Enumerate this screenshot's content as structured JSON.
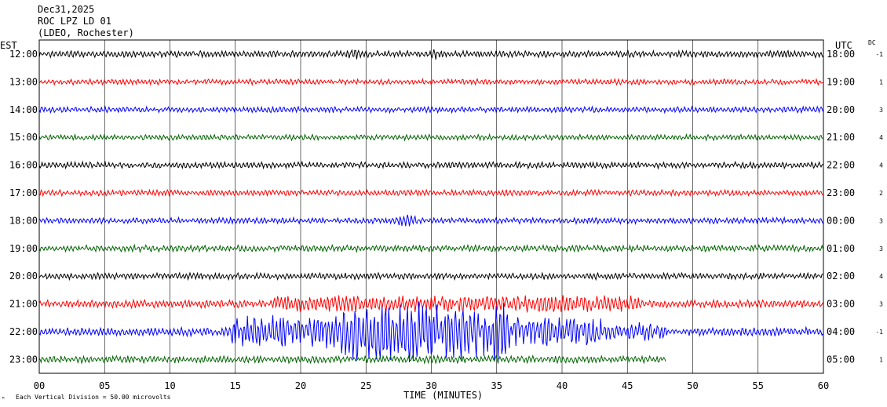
{
  "header": {
    "date": "Dec31,2025",
    "station": "ROC LPZ LD 01",
    "network": "(LDEO, Rochester)"
  },
  "left_axis_label": "EST",
  "right_axis_label": "UTC",
  "dc_label": "DC",
  "x_axis_title": "TIME (MINUTES)",
  "footer": {
    "scale_note": "Each Vertical Division =   50.00 microvolts",
    "corner_mark": "ᴹ"
  },
  "trace_colors": [
    "#000000",
    "#ff0000",
    "#0000ff",
    "#006400"
  ],
  "chart_data": {
    "type": "line",
    "title": "",
    "xlabel": "TIME (MINUTES)",
    "ylabel": "",
    "xlim": [
      0,
      60
    ],
    "x_ticks": [
      "00",
      "05",
      "10",
      "15",
      "20",
      "25",
      "30",
      "35",
      "40",
      "45",
      "50",
      "55",
      "60"
    ],
    "grid": true,
    "series": [
      {
        "est": "12:00",
        "utc": "18:00",
        "dc": "-1",
        "color": "#000000",
        "amplitude": 1.0,
        "events": [
          {
            "start": 23.5,
            "end": 24.5,
            "amp": 1.6
          },
          {
            "start": 30,
            "end": 30.5,
            "amp": 1.8
          }
        ]
      },
      {
        "est": "13:00",
        "utc": "19:00",
        "dc": "1",
        "color": "#ff0000",
        "amplitude": 0.85,
        "events": []
      },
      {
        "est": "14:00",
        "utc": "20:00",
        "dc": "3",
        "color": "#0000ff",
        "amplitude": 0.9,
        "events": []
      },
      {
        "est": "15:00",
        "utc": "21:00",
        "dc": "4",
        "color": "#006400",
        "amplitude": 0.85,
        "events": []
      },
      {
        "est": "16:00",
        "utc": "22:00",
        "dc": "4",
        "color": "#000000",
        "amplitude": 0.95,
        "events": []
      },
      {
        "est": "17:00",
        "utc": "23:00",
        "dc": "2",
        "color": "#ff0000",
        "amplitude": 0.9,
        "events": []
      },
      {
        "est": "18:00",
        "utc": "00:00",
        "dc": "3",
        "color": "#0000ff",
        "amplitude": 0.9,
        "events": [
          {
            "start": 27.5,
            "end": 29,
            "amp": 1.8
          }
        ]
      },
      {
        "est": "19:00",
        "utc": "01:00",
        "dc": "3",
        "color": "#006400",
        "amplitude": 1.0,
        "events": []
      },
      {
        "est": "20:00",
        "utc": "02:00",
        "dc": "4",
        "color": "#000000",
        "amplitude": 1.0,
        "events": []
      },
      {
        "est": "21:00",
        "utc": "03:00",
        "dc": "3",
        "color": "#ff0000",
        "amplitude": 1.2,
        "events": [
          {
            "start": 18,
            "end": 46,
            "amp": 2.6
          }
        ]
      },
      {
        "est": "22:00",
        "utc": "04:00",
        "dc": "-1",
        "color": "#0000ff",
        "amplitude": 1.3,
        "events": [
          {
            "start": 14.7,
            "end": 23,
            "amp": 5.0
          },
          {
            "start": 23,
            "end": 36,
            "amp": 9.0
          },
          {
            "start": 36,
            "end": 43,
            "amp": 4.5
          },
          {
            "start": 43,
            "end": 48,
            "amp": 2.8
          }
        ]
      },
      {
        "est": "23:00",
        "utc": "05:00",
        "dc": "1",
        "color": "#006400",
        "amplitude": 1.1,
        "end_minute": 48,
        "events": []
      }
    ]
  }
}
